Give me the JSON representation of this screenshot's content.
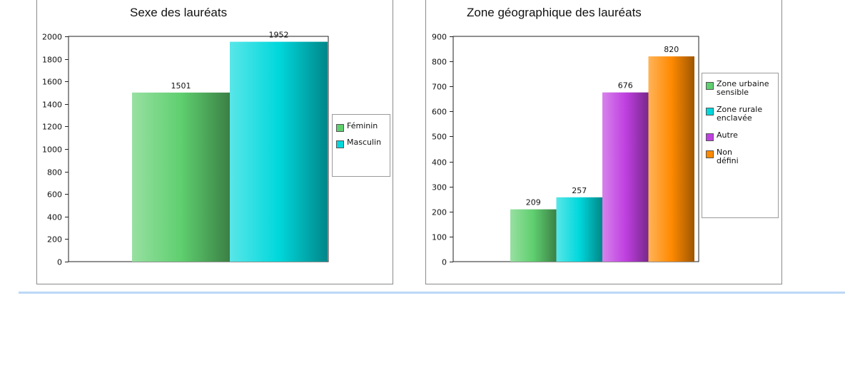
{
  "chart_data": [
    {
      "type": "bar",
      "title": "Sexe des lauréats",
      "categories": [
        "Féminin",
        "Masculin"
      ],
      "values": [
        1501,
        1952
      ],
      "colors": [
        "#5fcf6f",
        "#00d8dc"
      ],
      "ylim": [
        0,
        2000
      ],
      "yticks": [
        0,
        200,
        400,
        600,
        800,
        1000,
        1200,
        1400,
        1600,
        1800,
        2000
      ],
      "legend": [
        "Féminin",
        "Masculin"
      ],
      "legend_position": "right",
      "grid": false
    },
    {
      "type": "bar",
      "title": "Zone géographique des lauréats",
      "categories": [
        "Zone urbaine sensible",
        "Zone rurale enclavée",
        "Autre",
        "Non défini"
      ],
      "values": [
        209,
        257,
        676,
        820
      ],
      "colors": [
        "#5fcf6f",
        "#00d8dc",
        "#c040e0",
        "#ff8a00"
      ],
      "ylim": [
        0,
        900
      ],
      "yticks": [
        0,
        100,
        200,
        300,
        400,
        500,
        600,
        700,
        800,
        900
      ],
      "legend": [
        "Zone urbaine\nsensible",
        "Zone rurale\nenclavée",
        "Autre",
        "Non\ndéfini"
      ],
      "legend_position": "right",
      "grid": false
    }
  ]
}
